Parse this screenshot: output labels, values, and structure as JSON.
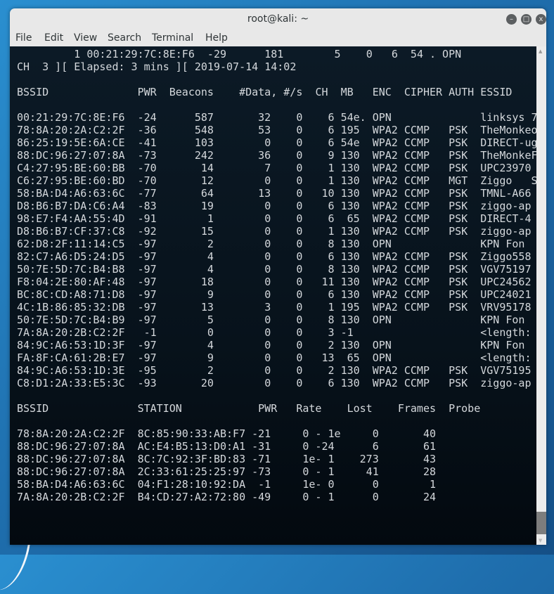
{
  "window": {
    "title": "root@kali: ~",
    "buttons": {
      "minimize": "–",
      "maximize": "□",
      "close": "x"
    }
  },
  "menu": [
    "File",
    "Edit",
    "View",
    "Search",
    "Terminal",
    "Help"
  ],
  "terminal": {
    "top_line": "         1 00:21:29:7C:8E:F6  -29      181        5    0   6  54 . OPN",
    "status_line": "CH  3 ][ Elapsed: 3 mins ][ 2019-07-14 14:02",
    "ap_headers": [
      "BSSID",
      "PWR",
      "Beacons",
      "#Data,",
      "#/s",
      "CH",
      "MB",
      "ENC",
      "CIPHER",
      "AUTH",
      "ESSID"
    ],
    "ap_rows": [
      [
        "00:21:29:7C:8E:F6",
        "-24",
        "587",
        "32",
        "0",
        "6",
        "54e.",
        "OPN",
        "",
        "",
        "linksys 7"
      ],
      [
        "78:8A:20:2A:C2:2F",
        "-36",
        "548",
        "53",
        "0",
        "6",
        "195",
        "WPA2",
        "CCMP",
        "PSK",
        "TheMonkeo"
      ],
      [
        "86:25:19:5E:6A:CE",
        "-41",
        "103",
        "0",
        "0",
        "6",
        "54e",
        "WPA2",
        "CCMP",
        "PSK",
        "DIRECT-ug"
      ],
      [
        "88:DC:96:27:07:8A",
        "-73",
        "242",
        "36",
        "0",
        "9",
        "130",
        "WPA2",
        "CCMP",
        "PSK",
        "TheMonkeF"
      ],
      [
        "C4:27:95:BE:60:BB",
        "-70",
        "14",
        "7",
        "0",
        "1",
        "130",
        "WPA2",
        "CCMP",
        "PSK",
        "UPC23970"
      ],
      [
        "C6:27:95:BE:60:BD",
        "-70",
        "12",
        "0",
        "0",
        "1",
        "130",
        "WPA2",
        "CCMP",
        "MGT",
        "Ziggo   S"
      ],
      [
        "58:BA:D4:A6:63:6C",
        "-77",
        "64",
        "13",
        "0",
        "10",
        "130",
        "WPA2",
        "CCMP",
        "PSK",
        "TMNL-A66"
      ],
      [
        "D8:B6:B7:DA:C6:A4",
        "-83",
        "19",
        "0",
        "0",
        "6",
        "130",
        "WPA2",
        "CCMP",
        "PSK",
        "ziggo-ap"
      ],
      [
        "98:E7:F4:AA:55:4D",
        "-91",
        "1",
        "0",
        "0",
        "6",
        "65",
        "WPA2",
        "CCMP",
        "PSK",
        "DIRECT-4"
      ],
      [
        "D8:B6:B7:CF:37:C8",
        "-92",
        "15",
        "0",
        "0",
        "1",
        "130",
        "WPA2",
        "CCMP",
        "PSK",
        "ziggo-ap"
      ],
      [
        "62:D8:2F:11:14:C5",
        "-97",
        "2",
        "0",
        "0",
        "8",
        "130",
        "OPN",
        "",
        "",
        "KPN Fon"
      ],
      [
        "82:C7:A6:D5:24:D5",
        "-97",
        "4",
        "0",
        "0",
        "6",
        "130",
        "WPA2",
        "CCMP",
        "PSK",
        "Ziggo558"
      ],
      [
        "50:7E:5D:7C:B4:B8",
        "-97",
        "4",
        "0",
        "0",
        "8",
        "130",
        "WPA2",
        "CCMP",
        "PSK",
        "VGV75197"
      ],
      [
        "F8:04:2E:80:AF:48",
        "-97",
        "18",
        "0",
        "0",
        "11",
        "130",
        "WPA2",
        "CCMP",
        "PSK",
        "UPC24562"
      ],
      [
        "BC:8C:CD:A8:71:D8",
        "-97",
        "9",
        "0",
        "0",
        "6",
        "130",
        "WPA2",
        "CCMP",
        "PSK",
        "UPC24021"
      ],
      [
        "4C:1B:86:85:32:DB",
        "-97",
        "13",
        "3",
        "0",
        "1",
        "195",
        "WPA2",
        "CCMP",
        "PSK",
        "VRV95178"
      ],
      [
        "50:7E:5D:7C:B4:B9",
        "-97",
        "5",
        "0",
        "0",
        "8",
        "130",
        "OPN",
        "",
        "",
        "KPN Fon"
      ],
      [
        "7A:8A:20:2B:C2:2F",
        "-1",
        "0",
        "0",
        "0",
        "3",
        "-1",
        "",
        "",
        "",
        "<length:"
      ],
      [
        "84:9C:A6:53:1D:3F",
        "-97",
        "4",
        "0",
        "0",
        "2",
        "130",
        "OPN",
        "",
        "",
        "KPN Fon"
      ],
      [
        "FA:8F:CA:61:2B:E7",
        "-97",
        "9",
        "0",
        "0",
        "13",
        "65",
        "OPN",
        "",
        "",
        "<length:"
      ],
      [
        "84:9C:A6:53:1D:3E",
        "-95",
        "2",
        "0",
        "0",
        "2",
        "130",
        "WPA2",
        "CCMP",
        "PSK",
        "VGV75195"
      ],
      [
        "C8:D1:2A:33:E5:3C",
        "-93",
        "20",
        "0",
        "0",
        "6",
        "130",
        "WPA2",
        "CCMP",
        "PSK",
        "ziggo-ap"
      ]
    ],
    "station_headers": [
      "BSSID",
      "STATION",
      "PWR",
      "Rate",
      "Lost",
      "Frames",
      "Probe"
    ],
    "station_rows": [
      [
        "78:8A:20:2A:C2:2F",
        "8C:85:90:33:AB:F7",
        "-21",
        "0 - 1e",
        "0",
        "40",
        ""
      ],
      [
        "88:DC:96:27:07:8A",
        "AC:E4:B5:13:D0:A1",
        "-31",
        "0 -24",
        "6",
        "61",
        ""
      ],
      [
        "88:DC:96:27:07:8A",
        "8C:7C:92:3F:BD:83",
        "-71",
        "1e- 1",
        "273",
        "43",
        ""
      ],
      [
        "88:DC:96:27:07:8A",
        "2C:33:61:25:25:97",
        "-73",
        "0 - 1",
        "41",
        "28",
        ""
      ],
      [
        "58:BA:D4:A6:63:6C",
        "04:F1:28:10:92:DA",
        "-1",
        "1e- 0",
        "0",
        "1",
        ""
      ],
      [
        "7A:8A:20:2B:C2:2F",
        "B4:CD:27:A2:72:80",
        "-49",
        "0 - 1",
        "0",
        "24",
        ""
      ]
    ]
  },
  "colors": {
    "terminal_bg": "#07121b",
    "terminal_fg": "#d4d8dc",
    "titlebar": "#e8e8e8"
  }
}
